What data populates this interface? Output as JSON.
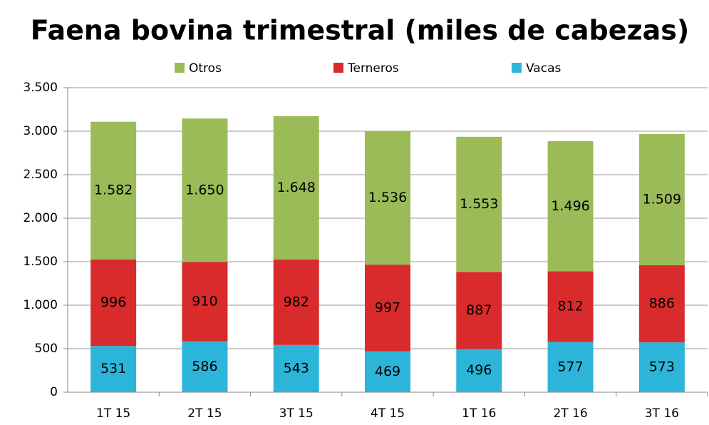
{
  "chart_data": {
    "type": "stacked_bar",
    "title": "Faena bovina trimestral (miles de cabezas)",
    "categories": [
      "1T 15",
      "2T 15",
      "3T 15",
      "4T 15",
      "1T 16",
      "2T 16",
      "3T 16"
    ],
    "series": [
      {
        "name": "Otros",
        "color": "#9bbb59",
        "values": [
          1582,
          1650,
          1648,
          1536,
          1553,
          1496,
          1509
        ],
        "value_labels": [
          "1.582",
          "1.650",
          "1.648",
          "1.536",
          "1.553",
          "1.496",
          "1.509"
        ]
      },
      {
        "name": "Terneros",
        "color": "#d92b2b",
        "values": [
          996,
          910,
          982,
          997,
          887,
          812,
          886
        ]
      },
      {
        "name": "Vacas",
        "color": "#2cb5d9",
        "values": [
          531,
          586,
          543,
          469,
          496,
          577,
          573
        ]
      }
    ],
    "ylim": [
      0,
      3500
    ],
    "yticks": [
      0,
      500,
      {
        "value": 1000,
        "label": "1.000"
      },
      {
        "value": 1500,
        "label": "1.500"
      },
      {
        "value": 2000,
        "label": "2.000"
      },
      {
        "value": 2500,
        "label": "2.500"
      },
      {
        "value": 3000,
        "label": "3.000"
      },
      {
        "value": 3500,
        "label": "3.500"
      }
    ],
    "grid": true,
    "legend": "top"
  }
}
